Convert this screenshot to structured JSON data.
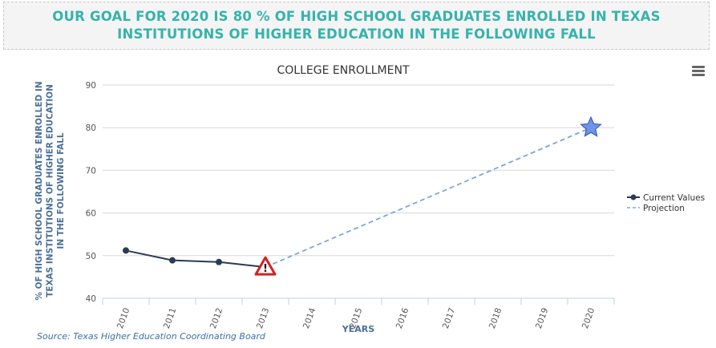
{
  "banner": {
    "text": "OUR GOAL FOR 2020 IS 80 % OF HIGH SCHOOL GRADUATES ENROLLED IN TEXAS INSTITUTIONS OF HIGHER EDUCATION IN THE FOLLOWING FALL"
  },
  "source": "Source: Texas Higher Education Coordinating Board",
  "icons": {
    "menu": "hamburger-menu-icon",
    "warning": "warning-triangle-icon",
    "goal": "star-icon"
  },
  "colors": {
    "banner_text": "#35b3ad",
    "current": "#2b3a55",
    "projection": "#7ba7d7",
    "warning": "#d62020",
    "star": "#6f94e8"
  },
  "chart_data": {
    "type": "line",
    "title": "COLLEGE ENROLLMENT",
    "xlabel": "YEARS",
    "ylabel_lines": [
      "% OF HIGH SCHOOL GRADUATES ENROLLED IN",
      "TEXAS INSTITUTIONS OF HIGHER EDUCATION",
      "IN THE FOLLOWING FALL"
    ],
    "categories": [
      "2010",
      "2011",
      "2012",
      "2013",
      "2014",
      "2015",
      "2016",
      "2017",
      "2018",
      "2019",
      "2020"
    ],
    "ylim": [
      40,
      90
    ],
    "yticks": [
      40,
      50,
      60,
      70,
      80,
      90
    ],
    "grid": true,
    "legend_position": "right",
    "series": [
      {
        "name": "Current Values",
        "style": "solid",
        "points": [
          [
            "2010",
            51.2
          ],
          [
            "2011",
            48.9
          ],
          [
            "2012",
            48.5
          ],
          [
            "2013",
            47.3
          ]
        ]
      },
      {
        "name": "Projection",
        "style": "dashed",
        "points": [
          [
            "2013",
            47.3
          ],
          [
            "2020",
            80
          ]
        ]
      }
    ],
    "markers": [
      {
        "category": "2013",
        "value": 47.3,
        "icon": "warning-triangle"
      },
      {
        "category": "2020",
        "value": 80,
        "icon": "star"
      }
    ]
  }
}
